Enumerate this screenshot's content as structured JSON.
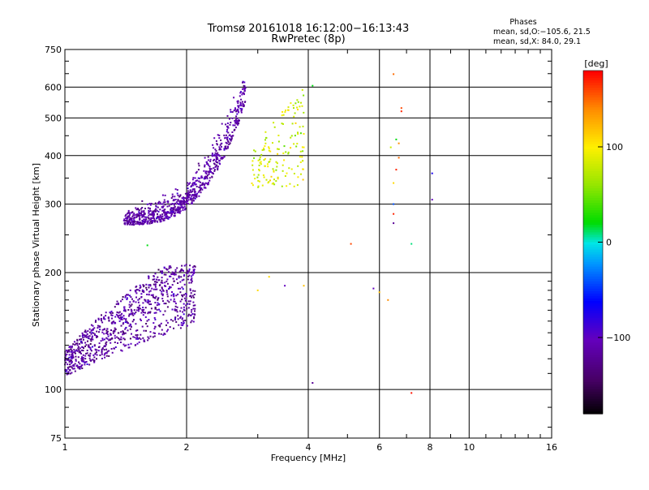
{
  "title_line1": "Tromsø 20161018 16:12:00−16:13:43",
  "title_line2": "RwPretec (8p)",
  "info": {
    "heading": "Phases",
    "line_o": "mean, sd,O:−105.6, 21.5",
    "line_x": "mean, sd,X:  84.0, 29.1"
  },
  "chart_data": {
    "type": "scatter",
    "x_scale": "log",
    "y_scale": "log",
    "xlim": [
      1,
      16
    ],
    "ylim": [
      75,
      750
    ],
    "xlabel": "Frequency [MHz]",
    "ylabel": "Stationary phase Virtual Height [km]",
    "x_ticks": [
      1,
      2,
      4,
      6,
      8,
      10,
      16
    ],
    "x_tick_labels": [
      "1",
      "2",
      "4",
      "6",
      "8",
      "10",
      "16"
    ],
    "y_ticks": [
      75,
      100,
      200,
      300,
      400,
      500,
      600,
      750
    ],
    "y_tick_labels": [
      "75",
      "100",
      "200",
      "300",
      "400",
      "500",
      "600",
      "750"
    ],
    "grid": true,
    "colorbar": {
      "label": "[deg]",
      "range": [
        -180,
        180
      ],
      "tick_values": [
        100,
        0,
        -100
      ],
      "tick_labels": [
        "100",
        "0",
        "−100"
      ]
    },
    "clusters": [
      {
        "name": "E-trace",
        "x_range": [
          1.0,
          2.1
        ],
        "y_range": [
          105,
          215
        ],
        "phase_mean": -115,
        "phase_sd": 25,
        "approx_points": 900
      },
      {
        "name": "F-trace O",
        "x_range": [
          1.4,
          2.8
        ],
        "y_range": [
          260,
          620
        ],
        "phase_mean": -110,
        "phase_sd": 20,
        "approx_points": 800
      },
      {
        "name": "F-trace X",
        "x_range": [
          2.9,
          3.9
        ],
        "y_range": [
          330,
          600
        ],
        "phase_mean": 84,
        "phase_sd": 29,
        "approx_points": 150
      }
    ],
    "points": [
      {
        "x": 4.1,
        "y": 104,
        "phase": -120
      },
      {
        "x": 5.1,
        "y": 237,
        "phase": 160
      },
      {
        "x": 6.5,
        "y": 648,
        "phase": 150
      },
      {
        "x": 6.8,
        "y": 530,
        "phase": 160
      },
      {
        "x": 6.8,
        "y": 520,
        "phase": 170
      },
      {
        "x": 6.6,
        "y": 440,
        "phase": 20
      },
      {
        "x": 6.7,
        "y": 430,
        "phase": 140
      },
      {
        "x": 6.4,
        "y": 420,
        "phase": 80
      },
      {
        "x": 6.7,
        "y": 395,
        "phase": 150
      },
      {
        "x": 6.6,
        "y": 368,
        "phase": 170
      },
      {
        "x": 6.5,
        "y": 340,
        "phase": 110
      },
      {
        "x": 6.5,
        "y": 300,
        "phase": -40
      },
      {
        "x": 6.5,
        "y": 283,
        "phase": 170
      },
      {
        "x": 6.5,
        "y": 268,
        "phase": -120
      },
      {
        "x": 7.2,
        "y": 98,
        "phase": 175
      },
      {
        "x": 7.2,
        "y": 237,
        "phase": 10
      },
      {
        "x": 8.1,
        "y": 360,
        "phase": -70
      },
      {
        "x": 8.1,
        "y": 308,
        "phase": -100
      },
      {
        "x": 5.8,
        "y": 182,
        "phase": -100
      },
      {
        "x": 6.0,
        "y": 178,
        "phase": 120
      },
      {
        "x": 6.3,
        "y": 170,
        "phase": 140
      },
      {
        "x": 3.9,
        "y": 455,
        "phase": 100
      },
      {
        "x": 3.9,
        "y": 420,
        "phase": 100
      },
      {
        "x": 4.1,
        "y": 605,
        "phase": 20
      },
      {
        "x": 3.9,
        "y": 185,
        "phase": 120
      },
      {
        "x": 3.5,
        "y": 185,
        "phase": -100
      },
      {
        "x": 3.0,
        "y": 180,
        "phase": 110
      },
      {
        "x": 3.2,
        "y": 195,
        "phase": 110
      },
      {
        "x": 2.1,
        "y": 207,
        "phase": -130
      },
      {
        "x": 1.6,
        "y": 235,
        "phase": 20
      }
    ]
  }
}
